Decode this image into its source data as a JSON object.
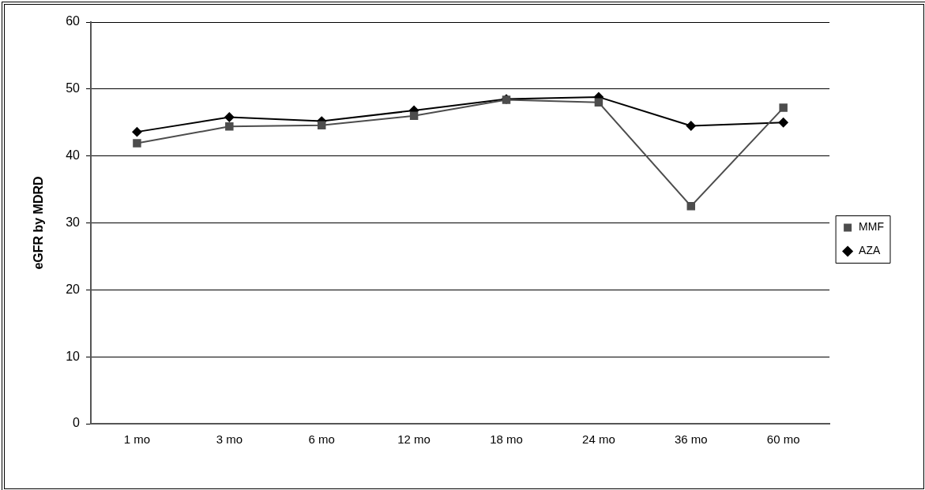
{
  "chart_data": {
    "type": "line",
    "ylabel": "eGFR by MDRD",
    "categories": [
      "1 mo",
      "3 mo",
      "6 mo",
      "12 mo",
      "18 mo",
      "24 mo",
      "36 mo",
      "60 mo"
    ],
    "series": [
      {
        "name": "AZA",
        "color": "#000000",
        "marker": "diamond",
        "values": [
          43.6,
          45.8,
          45.2,
          46.8,
          48.5,
          48.8,
          44.5,
          45.0
        ]
      },
      {
        "name": "MMF",
        "color": "#4d4d4d",
        "marker": "square",
        "values": [
          41.9,
          44.4,
          44.6,
          46.0,
          48.4,
          48.0,
          32.5,
          47.2
        ]
      }
    ],
    "ylim": [
      0,
      60
    ],
    "yticks": [
      0,
      10,
      20,
      30,
      40,
      50,
      60
    ],
    "grid": "y",
    "legend": "right",
    "line_style": "solid"
  }
}
